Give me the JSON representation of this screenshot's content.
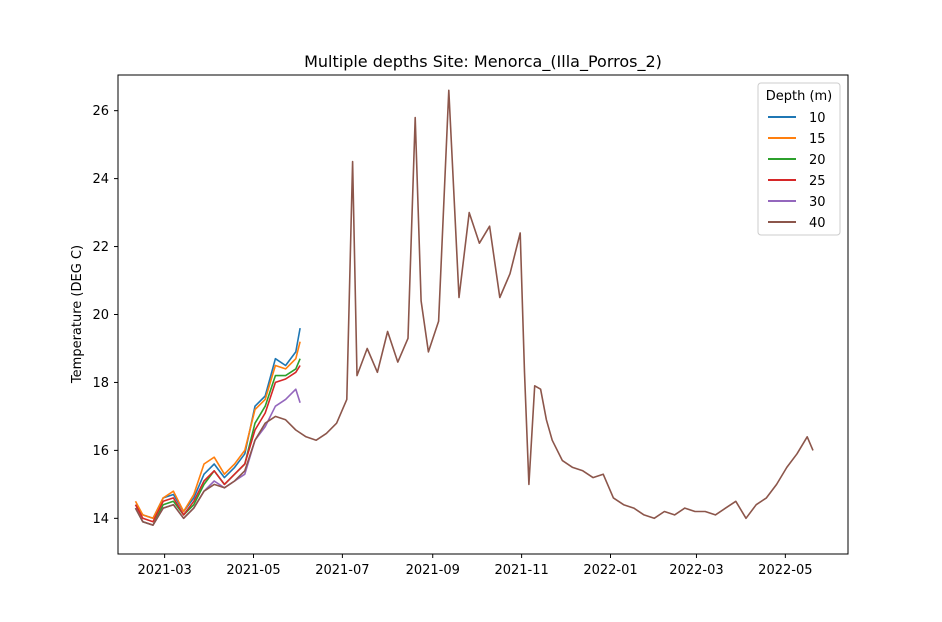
{
  "chart_data": {
    "type": "line",
    "title": "Multiple depths Site: Menorca_(Illa_Porros_2)",
    "xlabel": "",
    "ylabel": "Temperature (DEG C)",
    "xlim": [
      "2021-01-28",
      "2022-06-13"
    ],
    "ylim": [
      12.95,
      27.05
    ],
    "x_ticks": [
      "2021-03",
      "2021-05",
      "2021-07",
      "2021-09",
      "2021-11",
      "2022-01",
      "2022-03",
      "2022-05"
    ],
    "y_ticks": [
      14,
      16,
      18,
      20,
      22,
      24,
      26
    ],
    "grid": false,
    "legend": {
      "title": "Depth (m)",
      "position": "top-right"
    },
    "series": [
      {
        "name": "10",
        "color": "#1f77b4",
        "x": [
          "2021-02-09",
          "2021-02-14",
          "2021-02-21",
          "2021-02-28",
          "2021-03-07",
          "2021-03-14",
          "2021-03-21",
          "2021-03-28",
          "2021-04-04",
          "2021-04-11",
          "2021-04-18",
          "2021-04-25",
          "2021-05-02",
          "2021-05-09",
          "2021-05-16",
          "2021-05-23",
          "2021-05-30",
          "2021-06-02"
        ],
        "y": [
          14.4,
          14.1,
          14.0,
          14.6,
          14.7,
          14.2,
          14.6,
          15.3,
          15.6,
          15.2,
          15.5,
          15.9,
          17.3,
          17.6,
          18.7,
          18.5,
          18.9,
          19.6
        ]
      },
      {
        "name": "15",
        "color": "#ff7f0e",
        "x": [
          "2021-02-09",
          "2021-02-14",
          "2021-02-21",
          "2021-02-28",
          "2021-03-07",
          "2021-03-14",
          "2021-03-21",
          "2021-03-28",
          "2021-04-04",
          "2021-04-11",
          "2021-04-18",
          "2021-04-25",
          "2021-05-02",
          "2021-05-09",
          "2021-05-16",
          "2021-05-23",
          "2021-05-30",
          "2021-06-02"
        ],
        "y": [
          14.5,
          14.1,
          14.0,
          14.6,
          14.8,
          14.2,
          14.7,
          15.6,
          15.8,
          15.3,
          15.6,
          16.0,
          17.2,
          17.5,
          18.5,
          18.4,
          18.7,
          19.2
        ]
      },
      {
        "name": "20",
        "color": "#2ca02c",
        "x": [
          "2021-02-09",
          "2021-02-14",
          "2021-02-21",
          "2021-02-28",
          "2021-03-07",
          "2021-03-14",
          "2021-03-21",
          "2021-03-28",
          "2021-04-04",
          "2021-04-11",
          "2021-04-18",
          "2021-04-25",
          "2021-05-02",
          "2021-05-09",
          "2021-05-16",
          "2021-05-23",
          "2021-05-30",
          "2021-06-02"
        ],
        "y": [
          14.3,
          13.9,
          13.8,
          14.4,
          14.5,
          14.1,
          14.4,
          15.0,
          15.4,
          15.0,
          15.3,
          15.6,
          16.8,
          17.3,
          18.2,
          18.2,
          18.4,
          18.7
        ]
      },
      {
        "name": "25",
        "color": "#d62728",
        "x": [
          "2021-02-09",
          "2021-02-14",
          "2021-02-21",
          "2021-02-28",
          "2021-03-07",
          "2021-03-14",
          "2021-03-21",
          "2021-03-28",
          "2021-04-04",
          "2021-04-11",
          "2021-04-18",
          "2021-04-25",
          "2021-05-02",
          "2021-05-09",
          "2021-05-16",
          "2021-05-23",
          "2021-05-30",
          "2021-06-02"
        ],
        "y": [
          14.4,
          14.0,
          13.9,
          14.5,
          14.6,
          14.1,
          14.5,
          15.1,
          15.4,
          15.0,
          15.3,
          15.6,
          16.6,
          17.1,
          18.0,
          18.1,
          18.3,
          18.5
        ]
      },
      {
        "name": "30",
        "color": "#9467bd",
        "x": [
          "2021-02-09",
          "2021-02-14",
          "2021-02-21",
          "2021-02-28",
          "2021-03-07",
          "2021-03-14",
          "2021-03-21",
          "2021-03-28",
          "2021-04-04",
          "2021-04-11",
          "2021-04-18",
          "2021-04-25",
          "2021-05-02",
          "2021-05-09",
          "2021-05-16",
          "2021-05-23",
          "2021-05-30",
          "2021-06-02"
        ],
        "y": [
          14.3,
          13.9,
          13.8,
          14.3,
          14.4,
          14.0,
          14.3,
          14.8,
          15.1,
          14.9,
          15.1,
          15.3,
          16.3,
          16.7,
          17.3,
          17.5,
          17.8,
          17.4
        ]
      },
      {
        "name": "40",
        "color": "#8c564b",
        "x": [
          "2021-02-09",
          "2021-02-14",
          "2021-02-21",
          "2021-02-28",
          "2021-03-07",
          "2021-03-14",
          "2021-03-21",
          "2021-03-28",
          "2021-04-04",
          "2021-04-11",
          "2021-04-18",
          "2021-04-25",
          "2021-05-02",
          "2021-05-09",
          "2021-05-16",
          "2021-05-23",
          "2021-05-30",
          "2021-06-06",
          "2021-06-13",
          "2021-06-20",
          "2021-06-27",
          "2021-07-04",
          "2021-07-08",
          "2021-07-11",
          "2021-07-18",
          "2021-07-25",
          "2021-08-01",
          "2021-08-08",
          "2021-08-15",
          "2021-08-20",
          "2021-08-24",
          "2021-08-29",
          "2021-09-05",
          "2021-09-12",
          "2021-09-19",
          "2021-09-26",
          "2021-10-03",
          "2021-10-10",
          "2021-10-17",
          "2021-10-24",
          "2021-10-31",
          "2021-11-03",
          "2021-11-06",
          "2021-11-10",
          "2021-11-14",
          "2021-11-18",
          "2021-11-22",
          "2021-11-29",
          "2021-12-06",
          "2021-12-13",
          "2021-12-20",
          "2021-12-27",
          "2022-01-03",
          "2022-01-10",
          "2022-01-17",
          "2022-01-24",
          "2022-01-31",
          "2022-02-07",
          "2022-02-14",
          "2022-02-21",
          "2022-02-28",
          "2022-03-07",
          "2022-03-14",
          "2022-03-21",
          "2022-03-28",
          "2022-04-04",
          "2022-04-11",
          "2022-04-18",
          "2022-04-25",
          "2022-05-02",
          "2022-05-09",
          "2022-05-16",
          "2022-05-20"
        ],
        "y": [
          14.3,
          13.9,
          13.8,
          14.3,
          14.4,
          14.0,
          14.3,
          14.8,
          15.0,
          14.9,
          15.1,
          15.4,
          16.3,
          16.8,
          17.0,
          16.9,
          16.6,
          16.4,
          16.3,
          16.5,
          16.8,
          17.5,
          24.5,
          18.2,
          19.0,
          18.3,
          19.5,
          18.6,
          19.3,
          25.8,
          20.4,
          18.9,
          19.8,
          26.6,
          20.5,
          23.0,
          22.1,
          22.6,
          20.5,
          21.2,
          22.4,
          18.3,
          15.0,
          17.9,
          17.8,
          16.9,
          16.3,
          15.7,
          15.5,
          15.4,
          15.2,
          15.3,
          14.6,
          14.4,
          14.3,
          14.1,
          14.0,
          14.2,
          14.1,
          14.3,
          14.2,
          14.2,
          14.1,
          14.3,
          14.5,
          14.0,
          14.4,
          14.6,
          15.0,
          15.5,
          15.9,
          16.4,
          16.0
        ]
      }
    ]
  }
}
